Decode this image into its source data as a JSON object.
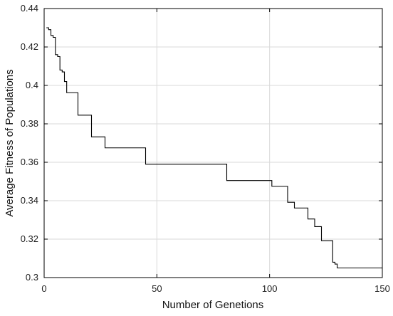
{
  "chart_data": {
    "type": "line",
    "title": "",
    "xlabel": "Number of Genetions",
    "ylabel": "Average Fitness of Populations",
    "xlim": [
      0,
      150
    ],
    "ylim": [
      0.3,
      0.44
    ],
    "grid": true,
    "line_style": "step",
    "x_ticks": [
      "0",
      "50",
      "100",
      "150"
    ],
    "y_ticks": [
      "0.3",
      "0.32",
      "0.34",
      "0.36",
      "0.38",
      "0.4",
      "0.42",
      "0.44"
    ],
    "series": [
      {
        "name": "",
        "color": "#000000",
        "x": [
          1,
          2,
          3,
          4,
          5,
          6,
          7,
          8,
          9,
          10,
          14,
          15,
          20,
          21,
          26,
          27,
          44,
          45,
          80,
          81,
          100,
          101,
          107,
          108,
          110,
          111,
          116,
          117,
          119,
          120,
          122,
          123,
          127,
          128,
          129,
          130,
          150
        ],
        "y": [
          0.43,
          0.429,
          0.426,
          0.425,
          0.416,
          0.415,
          0.408,
          0.407,
          0.402,
          0.3962,
          0.3962,
          0.3845,
          0.3845,
          0.3732,
          0.3732,
          0.3675,
          0.3675,
          0.359,
          0.359,
          0.3505,
          0.3505,
          0.3475,
          0.3475,
          0.3392,
          0.3392,
          0.3362,
          0.3362,
          0.3305,
          0.3305,
          0.3265,
          0.3265,
          0.3192,
          0.3192,
          0.308,
          0.307,
          0.305,
          0.305
        ]
      }
    ]
  }
}
